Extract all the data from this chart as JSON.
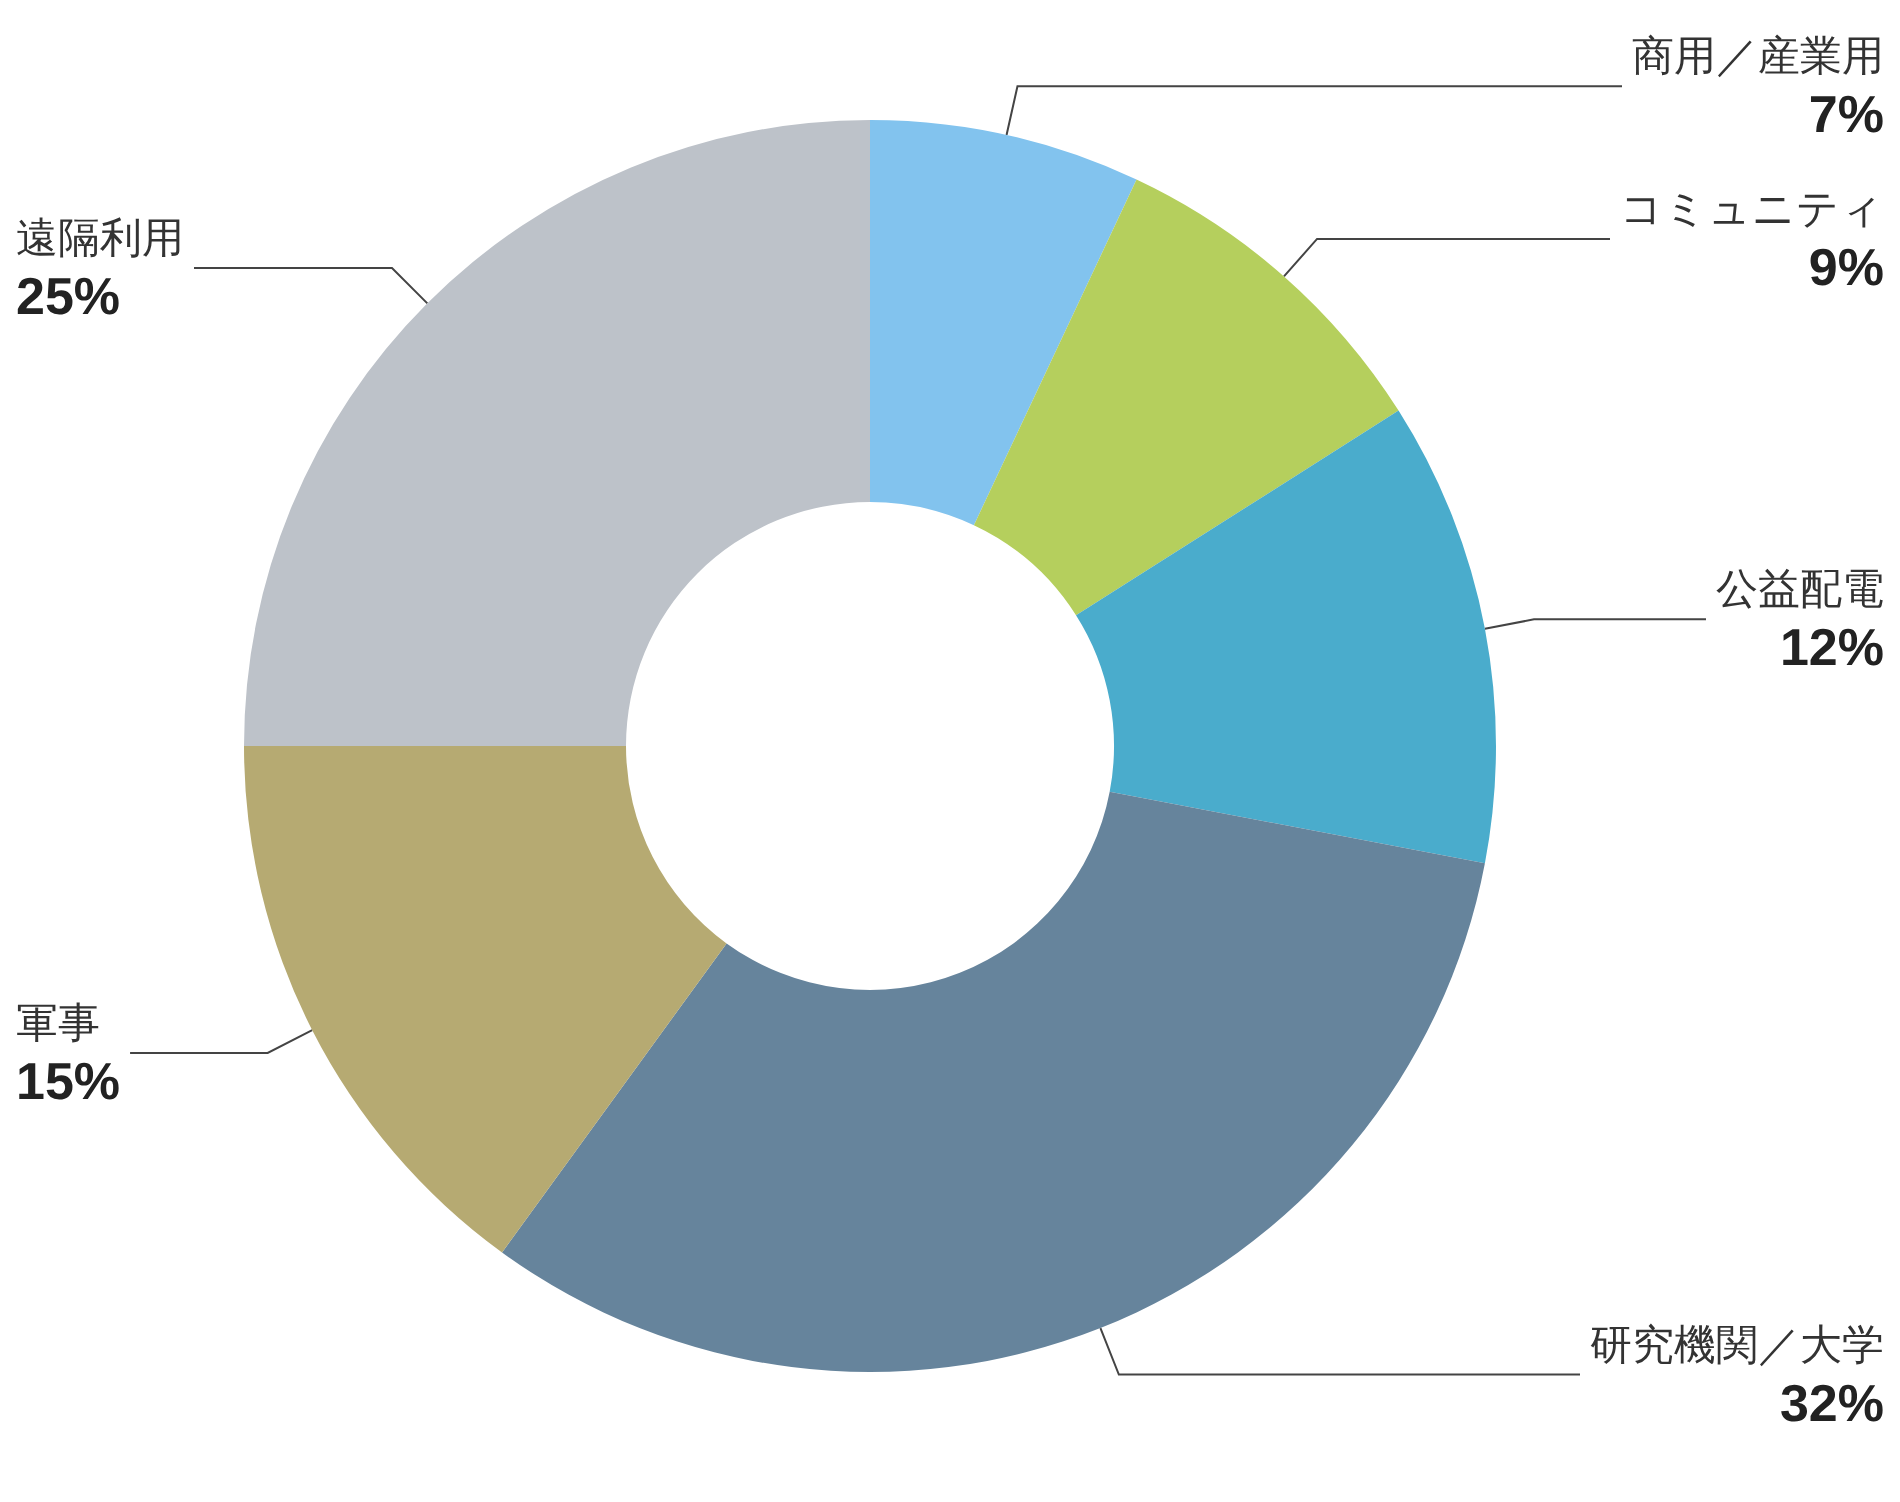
{
  "chart_data": {
    "type": "donut",
    "categories": [
      "商用／産業用",
      "コミュニティ",
      "公益配電",
      "研究機関／大学",
      "軍事",
      "遠隔利用"
    ],
    "values": [
      7,
      9,
      12,
      32,
      15,
      25
    ],
    "value_labels": [
      "7%",
      "9%",
      "12%",
      "32%",
      "15%",
      "25%"
    ],
    "colors": [
      "#82c3ee",
      "#b5cf5d",
      "#4aaccc",
      "#66849c",
      "#b6aa72",
      "#bdc2c9"
    ],
    "legend": false
  }
}
